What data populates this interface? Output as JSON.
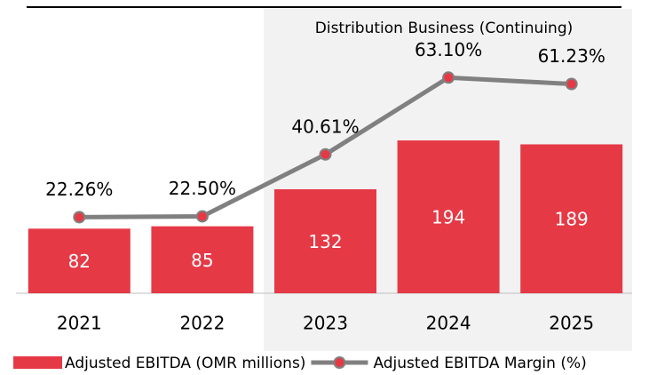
{
  "chart_data": {
    "type": "combo",
    "annotation": "Distribution Business (Continuing)",
    "categories": [
      "2021",
      "2022",
      "2023",
      "2024",
      "2025"
    ],
    "series": [
      {
        "name": "Adjusted EBITDA (OMR millions)",
        "type": "bar",
        "color": "#e63946",
        "values": [
          82,
          85,
          132,
          194,
          189
        ]
      },
      {
        "name": "Adjusted EBITDA Margin (%)",
        "type": "line",
        "axis": "y2",
        "color": "#808080",
        "marker_color": "#e63946",
        "values": [
          22.26,
          22.5,
          40.61,
          63.1,
          61.23
        ],
        "value_labels": [
          "22.26%",
          "22.50%",
          "40.61%",
          "63.10%",
          "61.23%"
        ]
      }
    ],
    "ylim": [
      0,
      361
    ],
    "y2lim": [
      0,
      83.2
    ],
    "grid": false
  }
}
